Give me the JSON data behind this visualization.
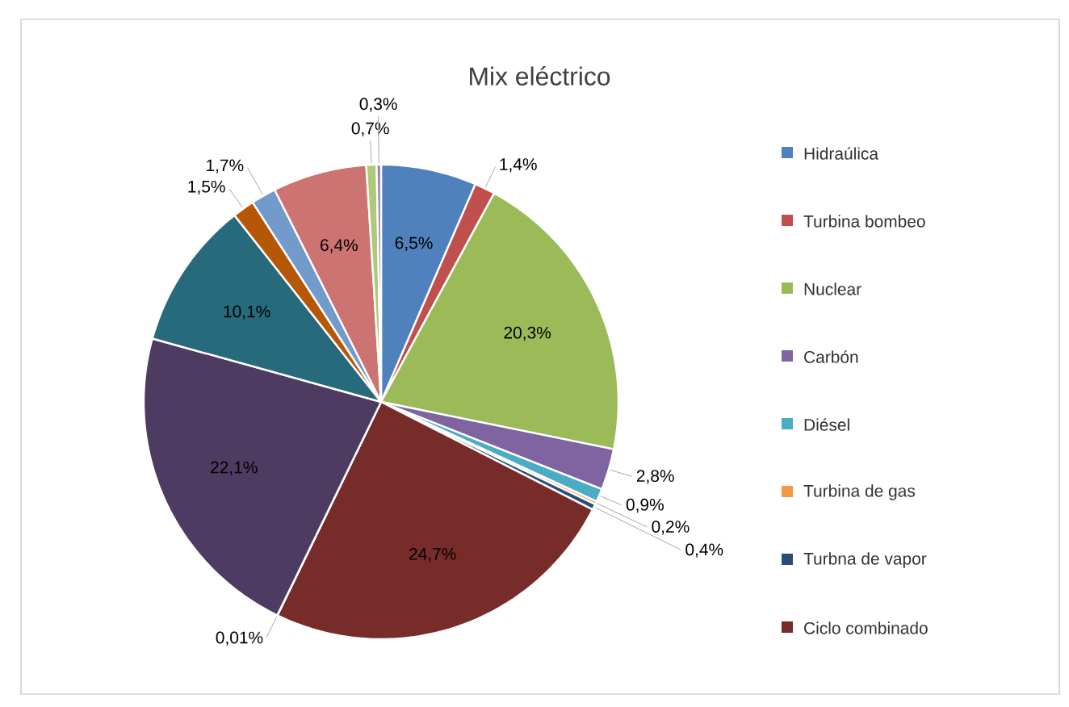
{
  "chart_data": {
    "type": "pie",
    "title": "Mix eléctrico",
    "categories": [
      "Hidraúlica",
      "Turbina bombeo",
      "Nuclear",
      "Carbón",
      "Diésel",
      "Turbina de gas",
      "Turbna de vapor",
      "Ciclo combinado",
      null,
      null,
      null,
      null,
      null,
      null,
      null,
      null
    ],
    "values": [
      6.5,
      1.4,
      20.3,
      2.8,
      0.9,
      0.2,
      0.4,
      24.7,
      0.01,
      22.1,
      10.1,
      1.5,
      1.7,
      6.4,
      0.7,
      0.3
    ],
    "colors": [
      "#4f81bd",
      "#c0504d",
      "#9bbb59",
      "#8064a2",
      "#4bacc6",
      "#f79646",
      "#2c4d75",
      "#772c2a",
      "#5f7530",
      "#4d3b62",
      "#276a7c",
      "#b65708",
      "#729aca",
      "#cd7371",
      "#afc97a",
      "#9983b5"
    ],
    "value_labels": [
      "6,5%",
      "1,4%",
      "20,3%",
      "2,8%",
      "0,9%",
      "0,2%",
      "0,4%",
      "24,7%",
      "0,01%",
      "22,1%",
      "10,1%",
      "1,5%",
      "1,7%",
      "6,4%",
      "0,7%",
      "0,3%"
    ],
    "legend": "right"
  }
}
